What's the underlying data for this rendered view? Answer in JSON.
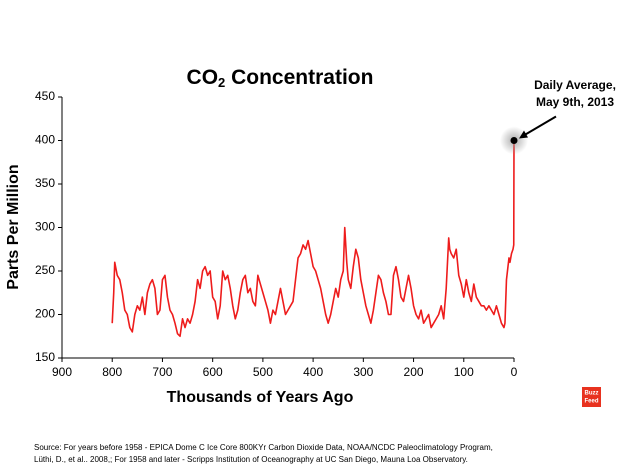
{
  "chart_data": {
    "type": "line",
    "title": [
      "CO",
      "2",
      " Concentration"
    ],
    "xlabel": "Thousands of Years Ago",
    "ylabel": "Parts Per Million",
    "color": "#ee1c1c",
    "xlim": [
      900,
      0
    ],
    "xticks": [
      900,
      800,
      700,
      600,
      500,
      400,
      300,
      200,
      100,
      0
    ],
    "ylim": [
      150,
      450
    ],
    "yticks": [
      150,
      200,
      250,
      300,
      350,
      400,
      450
    ],
    "x": [
      800,
      797,
      795,
      790,
      785,
      780,
      775,
      770,
      765,
      760,
      755,
      750,
      745,
      740,
      735,
      730,
      725,
      720,
      715,
      710,
      705,
      700,
      695,
      690,
      685,
      680,
      675,
      670,
      665,
      660,
      655,
      650,
      645,
      640,
      635,
      630,
      625,
      620,
      615,
      610,
      605,
      600,
      595,
      590,
      585,
      580,
      575,
      570,
      565,
      560,
      555,
      550,
      545,
      540,
      535,
      530,
      525,
      520,
      515,
      510,
      505,
      500,
      495,
      490,
      485,
      480,
      475,
      470,
      465,
      460,
      455,
      450,
      445,
      440,
      435,
      430,
      425,
      420,
      415,
      410,
      405,
      400,
      395,
      390,
      385,
      380,
      375,
      370,
      365,
      360,
      355,
      350,
      345,
      340,
      337,
      333,
      330,
      325,
      320,
      315,
      310,
      305,
      300,
      295,
      290,
      285,
      280,
      275,
      270,
      265,
      260,
      255,
      250,
      245,
      240,
      235,
      230,
      225,
      220,
      215,
      210,
      205,
      200,
      195,
      190,
      185,
      180,
      175,
      170,
      165,
      160,
      155,
      150,
      145,
      140,
      135,
      130,
      128,
      125,
      120,
      115,
      110,
      105,
      100,
      95,
      90,
      85,
      80,
      75,
      70,
      65,
      60,
      55,
      50,
      45,
      40,
      35,
      30,
      25,
      20,
      18,
      15,
      12,
      10,
      8,
      5,
      2,
      0.5,
      0
    ],
    "values": [
      190,
      225,
      260,
      245,
      240,
      225,
      205,
      200,
      185,
      180,
      200,
      210,
      205,
      220,
      200,
      225,
      235,
      240,
      230,
      200,
      205,
      240,
      245,
      220,
      205,
      200,
      190,
      178,
      175,
      195,
      185,
      195,
      190,
      200,
      215,
      240,
      230,
      250,
      255,
      245,
      250,
      220,
      215,
      195,
      210,
      250,
      240,
      245,
      230,
      210,
      195,
      205,
      225,
      240,
      245,
      225,
      230,
      215,
      210,
      245,
      235,
      225,
      215,
      205,
      190,
      205,
      200,
      215,
      230,
      215,
      200,
      205,
      210,
      215,
      240,
      265,
      270,
      280,
      275,
      285,
      270,
      255,
      250,
      240,
      230,
      215,
      200,
      190,
      200,
      215,
      230,
      220,
      240,
      250,
      300,
      260,
      240,
      230,
      255,
      275,
      265,
      240,
      225,
      210,
      200,
      190,
      205,
      225,
      245,
      240,
      225,
      215,
      200,
      200,
      245,
      255,
      240,
      220,
      215,
      230,
      245,
      230,
      210,
      200,
      195,
      205,
      190,
      195,
      200,
      185,
      190,
      195,
      200,
      210,
      195,
      230,
      288,
      275,
      270,
      265,
      275,
      245,
      235,
      220,
      240,
      225,
      215,
      235,
      220,
      215,
      210,
      210,
      205,
      210,
      205,
      200,
      210,
      200,
      190,
      185,
      190,
      240,
      255,
      265,
      260,
      270,
      275,
      280,
      400
    ],
    "annotation": {
      "text": [
        "Daily Average,",
        "May 9th, 2013"
      ],
      "x": 0,
      "y": 400
    },
    "logo": [
      "Buzz",
      "Feed"
    ],
    "source": [
      "Source:  For years before 1958 - EPICA Dome C Ice Core 800KYr Carbon Dioxide Data, NOAA/NCDC Paleoclimatology Program,",
      "Lüthi, D., et al.. 2008,; For 1958 and later - Scripps Institution of Oceanography at UC San Diego, Mauna Loa Observatory."
    ]
  }
}
